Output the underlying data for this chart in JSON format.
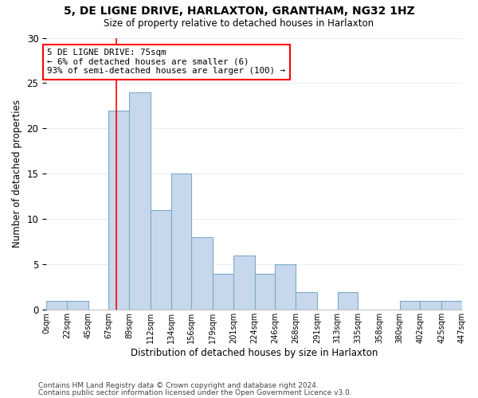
{
  "title": "5, DE LIGNE DRIVE, HARLAXTON, GRANTHAM, NG32 1HZ",
  "subtitle": "Size of property relative to detached houses in Harlaxton",
  "xlabel": "Distribution of detached houses by size in Harlaxton",
  "ylabel": "Number of detached properties",
  "bar_color": "#c8d8ec",
  "bar_edge_color": "#7baac8",
  "bin_edges": [
    0,
    22,
    45,
    67,
    89,
    112,
    134,
    156,
    179,
    201,
    224,
    246,
    268,
    291,
    313,
    335,
    358,
    380,
    402,
    425,
    447
  ],
  "bin_labels": [
    "0sqm",
    "22sqm",
    "45sqm",
    "67sqm",
    "89sqm",
    "112sqm",
    "134sqm",
    "156sqm",
    "179sqm",
    "201sqm",
    "224sqm",
    "246sqm",
    "268sqm",
    "291sqm",
    "313sqm",
    "335sqm",
    "358sqm",
    "380sqm",
    "402sqm",
    "425sqm",
    "447sqm"
  ],
  "counts": [
    1,
    1,
    0,
    22,
    24,
    11,
    15,
    8,
    4,
    6,
    4,
    5,
    2,
    0,
    2,
    0,
    0,
    1,
    1,
    1
  ],
  "red_line_x": 75,
  "annotation_text": "5 DE LIGNE DRIVE: 75sqm\n← 6% of detached houses are smaller (6)\n93% of semi-detached houses are larger (100) →",
  "ylim": [
    0,
    30
  ],
  "yticks": [
    0,
    5,
    10,
    15,
    20,
    25,
    30
  ],
  "footer1": "Contains HM Land Registry data © Crown copyright and database right 2024.",
  "footer2": "Contains public sector information licensed under the Open Government Licence v3.0.",
  "background_color": "#ffffff",
  "grid_color": "#e8eef4"
}
